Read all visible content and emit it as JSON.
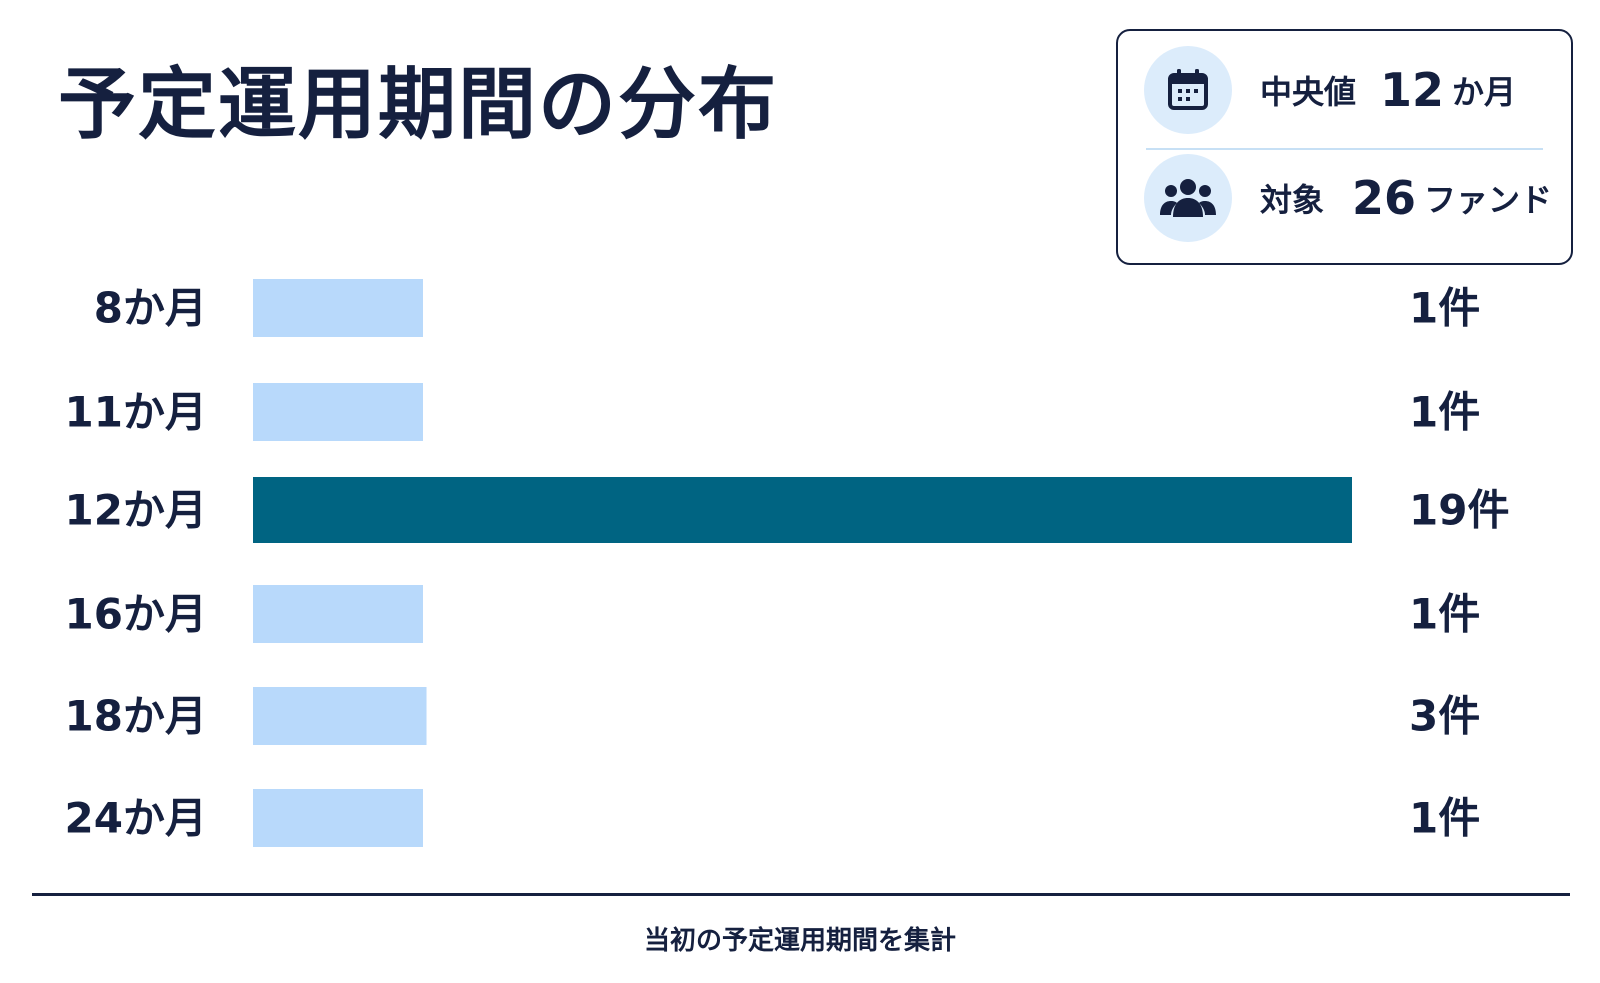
{
  "title": "予定運用期間の分布",
  "stats": {
    "median": {
      "icon": "calendar-icon",
      "label": "中央値",
      "value": "12",
      "unit": "か月"
    },
    "count": {
      "icon": "people-icon",
      "label": "対象",
      "value": "26",
      "unit": "ファンド"
    }
  },
  "footnote": "当初の予定運用期間を集計",
  "colors": {
    "text": "#15203f",
    "bar_default": "#b8d9fb",
    "bar_highlight": "#006482",
    "icon_bg": "#dcecfb"
  },
  "chart_data": {
    "type": "bar",
    "orientation": "horizontal",
    "categories": [
      "8か月",
      "11か月",
      "12か月",
      "16か月",
      "18か月",
      "24か月"
    ],
    "values": [
      1,
      1,
      19,
      1,
      3,
      1
    ],
    "value_labels": [
      "1件",
      "1件",
      "19件",
      "1件",
      "3件",
      "1件"
    ],
    "highlight": "12か月",
    "xlim": [
      0,
      19
    ]
  }
}
